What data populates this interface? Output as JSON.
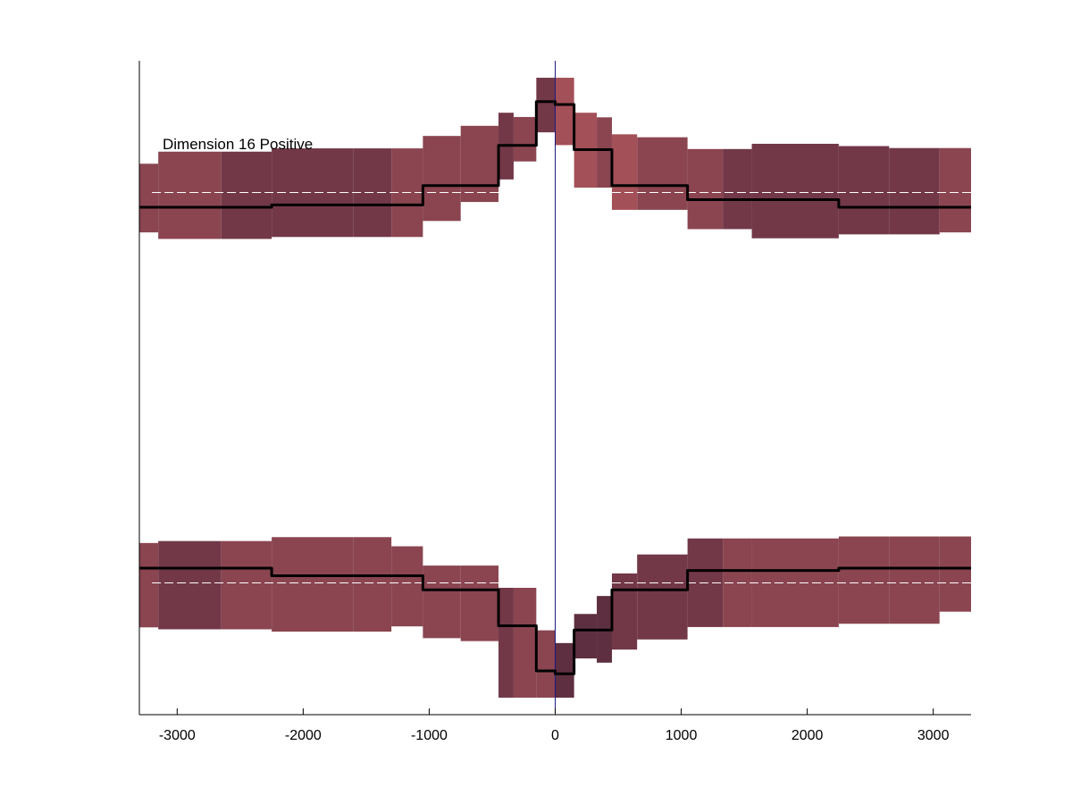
{
  "chart_data": {
    "type": "area",
    "title": "Dimension 16 Positive",
    "xlabel": "",
    "ylabel": "",
    "xlim": [
      -3300,
      3300
    ],
    "ylim": [
      -1,
      1
    ],
    "xticks": [
      -3000,
      -2000,
      -1000,
      0,
      1000,
      2000,
      3000
    ],
    "xtick_labels": [
      "-3000",
      "-2000",
      "-1000",
      "0",
      "1000",
      "2000",
      "3000"
    ],
    "yticks_shown": false,
    "grid": false,
    "vline_x": 0,
    "colors": {
      "band_dark": "#5e2f40",
      "band_mid": "#723848",
      "band_light": "#8a4550",
      "band_pink": "#a45058",
      "line": "#000000",
      "vline": "#1a1a80",
      "dashed": "#ffffff"
    },
    "panels": [
      {
        "name": "upper",
        "baseline": 0.597,
        "segments": [
          {
            "x": [
              -3300,
              -3150
            ],
            "low": 0.475,
            "high": 0.685,
            "center": 0.552,
            "tone": "band_light"
          },
          {
            "x": [
              -3150,
              -2650
            ],
            "low": 0.455,
            "high": 0.722,
            "center": 0.552,
            "tone": "band_light"
          },
          {
            "x": [
              -2650,
              -2250
            ],
            "low": 0.455,
            "high": 0.722,
            "center": 0.552,
            "tone": "band_mid"
          },
          {
            "x": [
              -2250,
              -1600
            ],
            "low": 0.461,
            "high": 0.732,
            "center": 0.559,
            "tone": "band_mid"
          },
          {
            "x": [
              -1600,
              -1300
            ],
            "low": 0.461,
            "high": 0.732,
            "center": 0.559,
            "tone": "band_mid"
          },
          {
            "x": [
              -1300,
              -1050
            ],
            "low": 0.461,
            "high": 0.732,
            "center": 0.559,
            "tone": "band_light"
          },
          {
            "x": [
              -1050,
              -750
            ],
            "low": 0.51,
            "high": 0.77,
            "center": 0.618,
            "tone": "band_light"
          },
          {
            "x": [
              -750,
              -450
            ],
            "low": 0.568,
            "high": 0.801,
            "center": 0.618,
            "tone": "band_light"
          },
          {
            "x": [
              -450,
              -330
            ],
            "low": 0.637,
            "high": 0.841,
            "center": 0.741,
            "tone": "band_mid"
          },
          {
            "x": [
              -330,
              -150
            ],
            "low": 0.692,
            "high": 0.828,
            "center": 0.741,
            "tone": "band_light"
          },
          {
            "x": [
              -150,
              0
            ],
            "low": 0.781,
            "high": 0.948,
            "center": 0.875,
            "tone": "band_mid"
          },
          {
            "x": [
              0,
              150
            ],
            "low": 0.742,
            "high": 0.948,
            "center": 0.866,
            "tone": "band_pink"
          },
          {
            "x": [
              150,
              330
            ],
            "low": 0.612,
            "high": 0.841,
            "center": 0.728,
            "tone": "band_pink"
          },
          {
            "x": [
              330,
              450
            ],
            "low": 0.612,
            "high": 0.827,
            "center": 0.728,
            "tone": "band_light"
          },
          {
            "x": [
              450,
              650
            ],
            "low": 0.544,
            "high": 0.775,
            "center": 0.618,
            "tone": "band_pink"
          },
          {
            "x": [
              650,
              1050
            ],
            "low": 0.544,
            "high": 0.766,
            "center": 0.618,
            "tone": "band_light"
          },
          {
            "x": [
              1050,
              1330
            ],
            "low": 0.485,
            "high": 0.73,
            "center": 0.575,
            "tone": "band_light"
          },
          {
            "x": [
              1330,
              1560
            ],
            "low": 0.485,
            "high": 0.73,
            "center": 0.575,
            "tone": "band_mid"
          },
          {
            "x": [
              1560,
              2250
            ],
            "low": 0.457,
            "high": 0.746,
            "center": 0.575,
            "tone": "band_mid"
          },
          {
            "x": [
              2250,
              2650
            ],
            "low": 0.469,
            "high": 0.739,
            "center": 0.552,
            "tone": "band_mid"
          },
          {
            "x": [
              2650,
              3050
            ],
            "low": 0.469,
            "high": 0.733,
            "center": 0.552,
            "tone": "band_mid"
          },
          {
            "x": [
              3050,
              3300
            ],
            "low": 0.475,
            "high": 0.733,
            "center": 0.552,
            "tone": "band_light"
          }
        ]
      },
      {
        "name": "lower",
        "baseline": -0.597,
        "segments": [
          {
            "x": [
              -3300,
              -3150
            ],
            "low": -0.733,
            "high": -0.475,
            "center": -0.552,
            "tone": "band_light"
          },
          {
            "x": [
              -3150,
              -2650
            ],
            "low": -0.739,
            "high": -0.469,
            "center": -0.552,
            "tone": "band_mid"
          },
          {
            "x": [
              -2650,
              -2250
            ],
            "low": -0.739,
            "high": -0.469,
            "center": -0.552,
            "tone": "band_light"
          },
          {
            "x": [
              -2250,
              -1600
            ],
            "low": -0.746,
            "high": -0.457,
            "center": -0.575,
            "tone": "band_light"
          },
          {
            "x": [
              -1600,
              -1300
            ],
            "low": -0.746,
            "high": -0.457,
            "center": -0.575,
            "tone": "band_light"
          },
          {
            "x": [
              -1300,
              -1050
            ],
            "low": -0.73,
            "high": -0.485,
            "center": -0.575,
            "tone": "band_light"
          },
          {
            "x": [
              -1050,
              -750
            ],
            "low": -0.766,
            "high": -0.544,
            "center": -0.618,
            "tone": "band_light"
          },
          {
            "x": [
              -750,
              -450
            ],
            "low": -0.775,
            "high": -0.544,
            "center": -0.618,
            "tone": "band_light"
          },
          {
            "x": [
              -450,
              -330
            ],
            "low": -0.948,
            "high": -0.612,
            "center": -0.728,
            "tone": "band_mid"
          },
          {
            "x": [
              -330,
              -150
            ],
            "low": -0.948,
            "high": -0.612,
            "center": -0.728,
            "tone": "band_light"
          },
          {
            "x": [
              -150,
              0
            ],
            "low": -0.948,
            "high": -0.742,
            "center": -0.866,
            "tone": "band_light"
          },
          {
            "x": [
              0,
              150
            ],
            "low": -0.948,
            "high": -0.781,
            "center": -0.875,
            "tone": "band_dark"
          },
          {
            "x": [
              150,
              330
            ],
            "low": -0.828,
            "high": -0.692,
            "center": -0.741,
            "tone": "band_dark"
          },
          {
            "x": [
              330,
              450
            ],
            "low": -0.841,
            "high": -0.637,
            "center": -0.741,
            "tone": "band_dark"
          },
          {
            "x": [
              450,
              650
            ],
            "low": -0.801,
            "high": -0.568,
            "center": -0.618,
            "tone": "band_mid"
          },
          {
            "x": [
              650,
              1050
            ],
            "low": -0.77,
            "high": -0.51,
            "center": -0.618,
            "tone": "band_mid"
          },
          {
            "x": [
              1050,
              1330
            ],
            "low": -0.732,
            "high": -0.461,
            "center": -0.559,
            "tone": "band_mid"
          },
          {
            "x": [
              1330,
              1560
            ],
            "low": -0.732,
            "high": -0.461,
            "center": -0.559,
            "tone": "band_light"
          },
          {
            "x": [
              1560,
              2250
            ],
            "low": -0.732,
            "high": -0.461,
            "center": -0.559,
            "tone": "band_light"
          },
          {
            "x": [
              2250,
              2650
            ],
            "low": -0.722,
            "high": -0.455,
            "center": -0.552,
            "tone": "band_light"
          },
          {
            "x": [
              2650,
              3050
            ],
            "low": -0.722,
            "high": -0.455,
            "center": -0.552,
            "tone": "band_light"
          },
          {
            "x": [
              3050,
              3300
            ],
            "low": -0.685,
            "high": -0.455,
            "center": -0.552,
            "tone": "band_light"
          }
        ]
      }
    ]
  }
}
